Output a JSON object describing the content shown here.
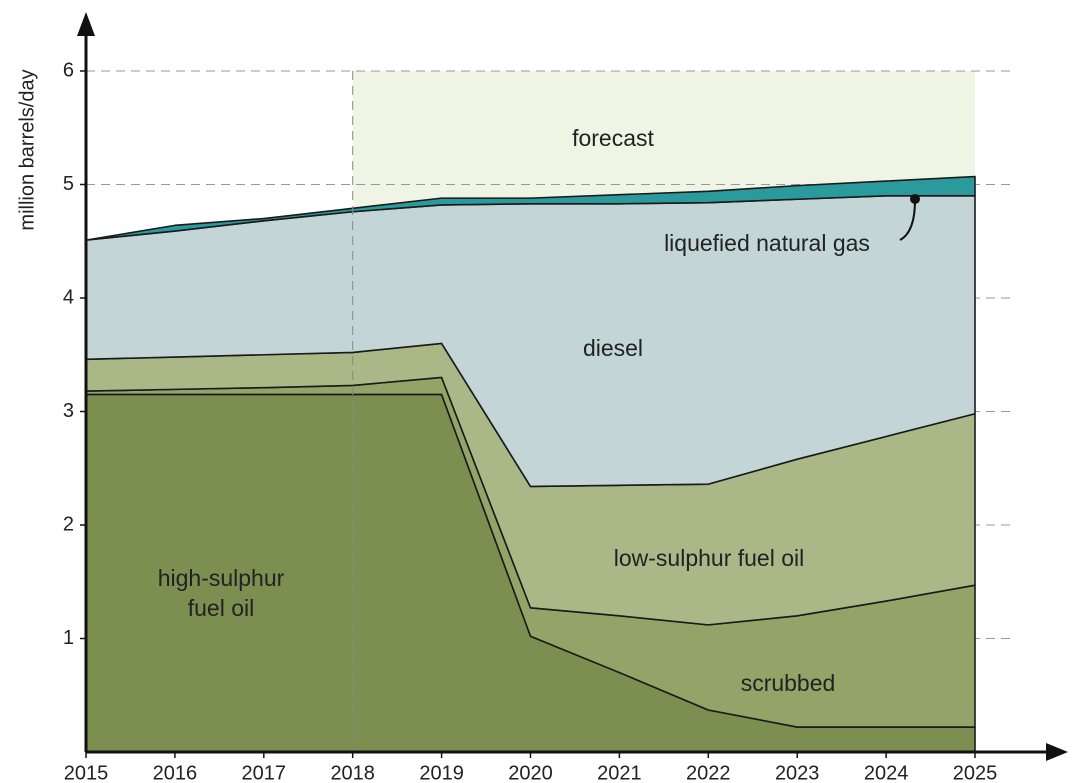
{
  "chart_data": {
    "type": "stacked_area",
    "y_label": "million barrels/day",
    "x": [
      2015,
      2016,
      2017,
      2018,
      2019,
      2020,
      2021,
      2022,
      2023,
      2024,
      2025
    ],
    "series": [
      {
        "name": "high-sulphur fuel oil",
        "color": "#7b8f50",
        "values": [
          3.15,
          3.15,
          3.15,
          3.15,
          3.15,
          1.02,
          0.7,
          0.37,
          0.22,
          0.22,
          0.22
        ]
      },
      {
        "name": "scrubbed",
        "color": "#93a468",
        "values": [
          0.03,
          0.045,
          0.06,
          0.08,
          0.15,
          0.25,
          0.5,
          0.75,
          0.98,
          1.11,
          1.25
        ]
      },
      {
        "name": "low-sulphur fuel oil",
        "color": "#aab888",
        "values": [
          0.28,
          0.285,
          0.29,
          0.29,
          0.3,
          1.07,
          1.15,
          1.24,
          1.38,
          1.45,
          1.51
        ]
      },
      {
        "name": "diesel",
        "color": "#c3d5d6",
        "values": [
          1.05,
          1.11,
          1.18,
          1.24,
          1.22,
          2.49,
          2.48,
          2.48,
          2.29,
          2.12,
          1.92
        ]
      },
      {
        "name": "liquefied natural gas",
        "color": "#2a9a9c",
        "values": [
          0,
          0.05,
          0.02,
          0.03,
          0.06,
          0.05,
          0.08,
          0.1,
          0.12,
          0.13,
          0.17
        ]
      }
    ],
    "forecast_label": "forecast",
    "forecast_start": 2018,
    "forecast_color": "#f0f4e4",
    "xlim": [
      2015,
      2025
    ],
    "xticks": [
      2015,
      2016,
      2017,
      2018,
      2019,
      2020,
      2021,
      2022,
      2023,
      2024,
      2025
    ],
    "ylim": [
      0,
      6
    ],
    "yticks": [
      1,
      2,
      3,
      4,
      5,
      6
    ],
    "grid": true
  }
}
